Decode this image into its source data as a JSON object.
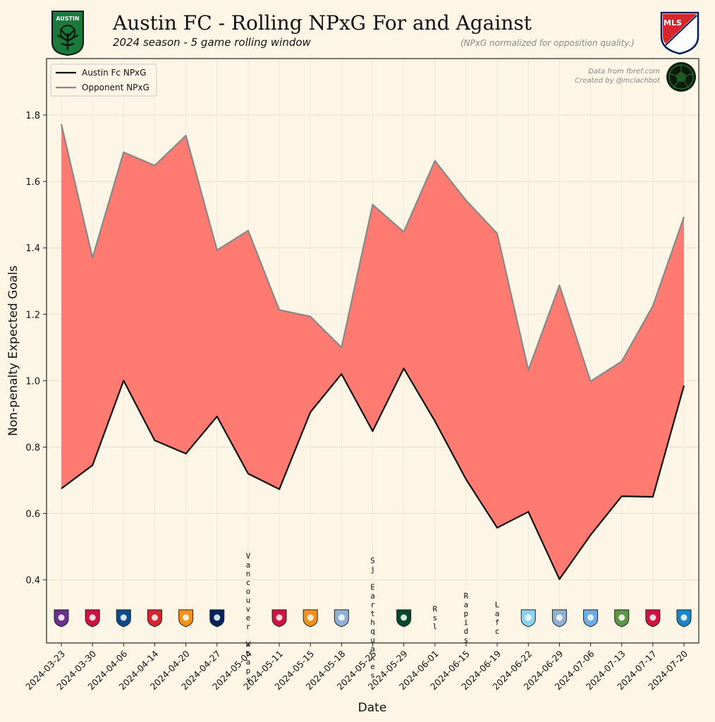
{
  "header": {
    "title": "Austin FC - Rolling NPxG For and Against",
    "subtitle": "2024 season - 5 game rolling window",
    "note": "(NPxG normalized for opposition quality.)",
    "team_logo_text": "AUSTIN",
    "league_logo_text": "MLS"
  },
  "credits": {
    "source": "Data from fbref.com",
    "author": "Created by @mclachbot"
  },
  "colors": {
    "fill": "#ff7a70",
    "team_line": "#111111",
    "opp_line": "#888888",
    "background": "#fdf5e6",
    "austin_green": "#1a7a3c"
  },
  "chart_data": {
    "type": "line",
    "title": "Austin FC - Rolling NPxG For and Against",
    "xlabel": "Date",
    "ylabel": "Non-penalty Expected Goals",
    "ylim": [
      0.21,
      1.97
    ],
    "yticks": [
      0.4,
      0.6,
      0.8,
      1.0,
      1.2,
      1.4,
      1.6,
      1.8
    ],
    "grid": true,
    "legend": "top-left",
    "categories": [
      "2024-03-23",
      "2024-03-30",
      "2024-04-06",
      "2024-04-14",
      "2024-04-20",
      "2024-04-27",
      "2024-05-04",
      "2024-05-11",
      "2024-05-15",
      "2024-05-18",
      "2024-05-25",
      "2024-05-29",
      "2024-06-01",
      "2024-06-15",
      "2024-06-19",
      "2024-06-22",
      "2024-06-29",
      "2024-07-06",
      "2024-07-13",
      "2024-07-17",
      "2024-07-20"
    ],
    "series": [
      {
        "name": "Austin Fc NPxG",
        "values": [
          0.675,
          0.745,
          1.0,
          0.82,
          0.78,
          0.892,
          0.72,
          0.673,
          0.905,
          1.02,
          0.848,
          1.037,
          0.878,
          0.703,
          0.557,
          0.605,
          0.402,
          0.535,
          0.652,
          0.65,
          0.985
        ]
      },
      {
        "name": "Opponent NPxG",
        "values": [
          1.772,
          1.37,
          1.688,
          1.648,
          1.738,
          1.393,
          1.452,
          1.213,
          1.193,
          1.1,
          1.53,
          1.448,
          1.662,
          1.543,
          1.443,
          1.032,
          1.287,
          0.998,
          1.058,
          1.225,
          1.493
        ]
      }
    ],
    "opponents": [
      {
        "label": "Orlando City",
        "kind": "logo",
        "color": "#6b2f8f"
      },
      {
        "label": "FC Dallas",
        "kind": "logo",
        "color": "#d11241"
      },
      {
        "label": "San Jose",
        "kind": "logo",
        "color": "#0d4c8b"
      },
      {
        "label": "St. Louis City",
        "kind": "logo",
        "color": "#d22630"
      },
      {
        "label": "Houston Dynamo",
        "kind": "logo",
        "color": "#f4911e"
      },
      {
        "label": "LA Galaxy",
        "kind": "logo",
        "color": "#00245d"
      },
      {
        "label": "Vancouver Wcaps",
        "kind": "text"
      },
      {
        "label": "FC Dallas",
        "kind": "logo",
        "color": "#d11241"
      },
      {
        "label": "Houston Dynamo",
        "kind": "logo",
        "color": "#f4911e"
      },
      {
        "label": "Sporting KC",
        "kind": "logo",
        "color": "#91b0d5"
      },
      {
        "label": "Sj Earthquakes",
        "kind": "text"
      },
      {
        "label": "Portland Timbers",
        "kind": "logo",
        "color": "#00482b"
      },
      {
        "label": "Rsl",
        "kind": "text"
      },
      {
        "label": "Rapids",
        "kind": "text"
      },
      {
        "label": "Lafc",
        "kind": "text"
      },
      {
        "label": "Minnesota United",
        "kind": "logo",
        "color": "#8cd2f4"
      },
      {
        "label": "Sporting KC",
        "kind": "logo",
        "color": "#91b0d5"
      },
      {
        "label": "NYCFC",
        "kind": "logo",
        "color": "#6cace4"
      },
      {
        "label": "Seattle Sounders",
        "kind": "logo",
        "color": "#5d9741"
      },
      {
        "label": "FC Dallas",
        "kind": "logo",
        "color": "#d11241"
      },
      {
        "label": "Charlotte FC",
        "kind": "logo",
        "color": "#1a85c8"
      }
    ]
  }
}
